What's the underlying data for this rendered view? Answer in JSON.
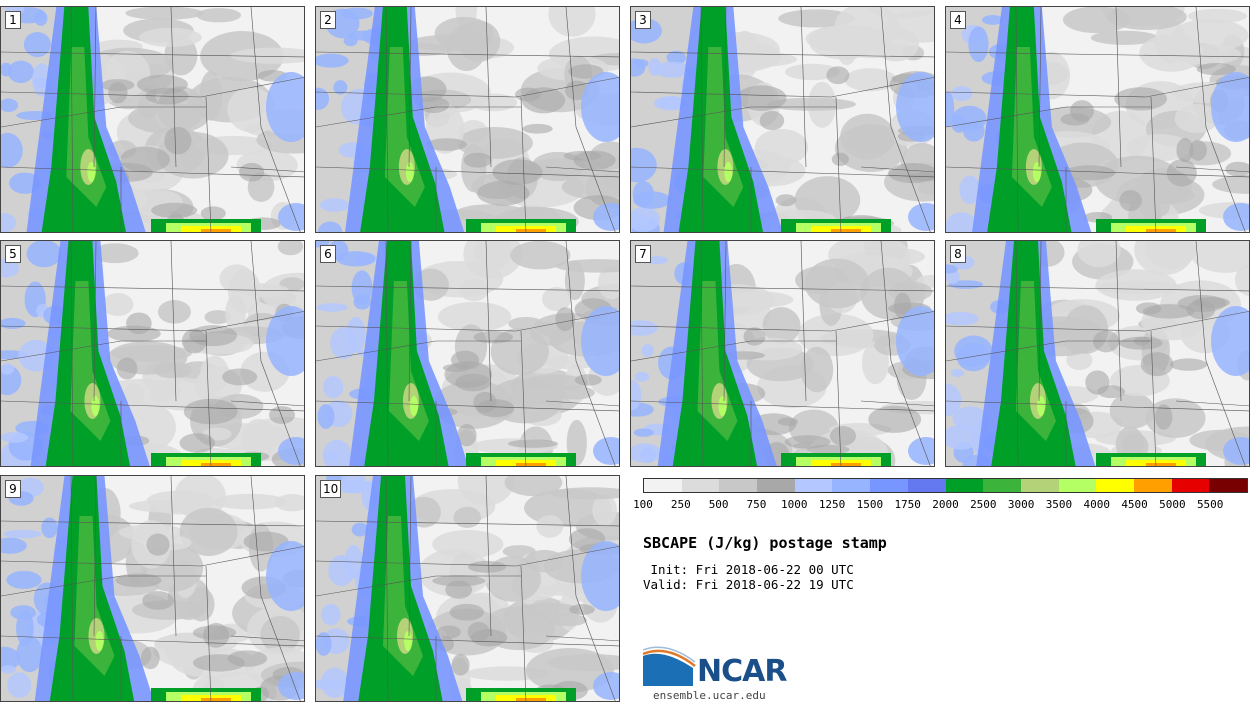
{
  "title": "SBCAPE (J/kg) postage stamp",
  "init": " Init: Fri 2018-06-22 00 UTC",
  "valid": "Valid: Fri 2018-06-22 19 UTC",
  "logo_text": "NCAR",
  "site": "ensemble.ucar.edu",
  "panels": [
    "1",
    "2",
    "3",
    "4",
    "5",
    "6",
    "7",
    "8",
    "9",
    "10"
  ],
  "colorbar": {
    "colors": [
      "#f2f2f2",
      "#dcdcdc",
      "#c8c8c8",
      "#a8a8a8",
      "#b4c8ff",
      "#96b4ff",
      "#7896ff",
      "#6478f0",
      "#00a028",
      "#3cb43c",
      "#b4d278",
      "#b4ff64",
      "#ffff00",
      "#ffa000",
      "#e60000",
      "#780000"
    ],
    "labels": [
      "100",
      "250",
      "500",
      "750",
      "1000",
      "1250",
      "1500",
      "1750",
      "2000",
      "2500",
      "3000",
      "3500",
      "4000",
      "4500",
      "5000",
      "5500"
    ]
  }
}
